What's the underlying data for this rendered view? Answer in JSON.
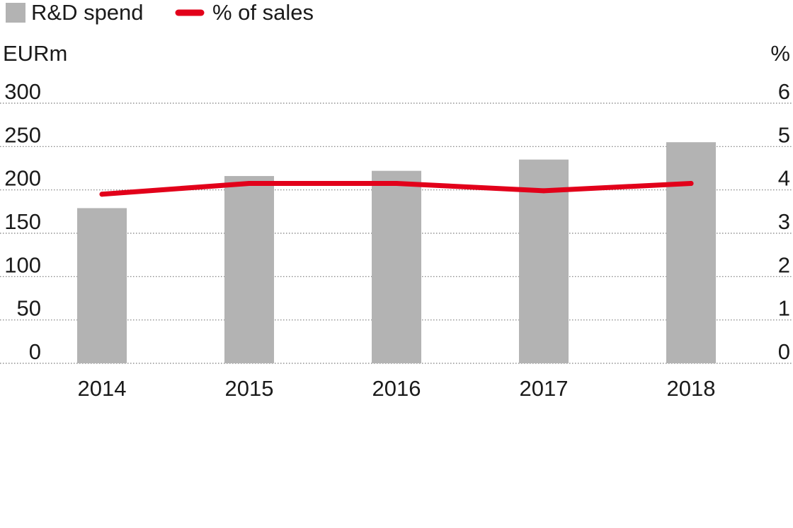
{
  "chart_data": {
    "type": "bar",
    "categories": [
      "2014",
      "2015",
      "2016",
      "2017",
      "2018"
    ],
    "series": [
      {
        "name": "R&D spend",
        "type": "bar",
        "axis": "left",
        "color": "#b3b3b3",
        "values": [
          179,
          216,
          222,
          235,
          255
        ]
      },
      {
        "name": "% of sales",
        "type": "line",
        "axis": "right",
        "color": "#e2001a",
        "values": [
          3.9,
          4.15,
          4.15,
          3.98,
          4.15
        ]
      }
    ],
    "left_axis": {
      "unit": "EURm",
      "ylim": [
        0,
        300
      ],
      "ticks": [
        "0",
        "50",
        "100",
        "150",
        "200",
        "250",
        "300"
      ]
    },
    "right_axis": {
      "unit": "%",
      "ylim": [
        0,
        6
      ],
      "ticks": [
        "0",
        "1",
        "2",
        "3",
        "4",
        "5",
        "6"
      ]
    },
    "grid": true,
    "legend_position": "top-left",
    "legend": [
      {
        "label": "R&D spend",
        "symbol": "square",
        "color": "#b3b3b3"
      },
      {
        "label": "% of sales",
        "symbol": "line",
        "color": "#e2001a"
      }
    ]
  }
}
